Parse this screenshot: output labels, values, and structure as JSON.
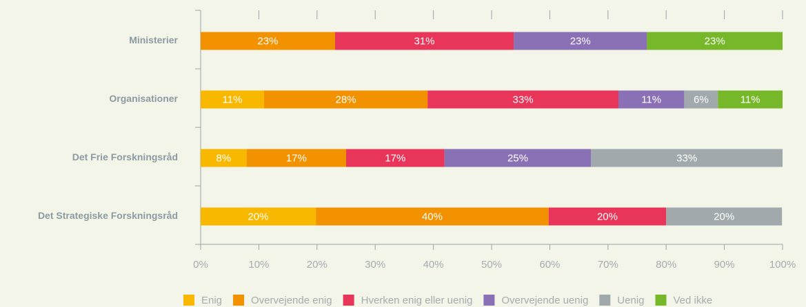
{
  "chart_data": {
    "type": "stacked-barh",
    "categories": [
      "Ministerier",
      "Organisationer",
      "Det Frie Forskningsråd",
      "Det Strategiske Forskningsråd"
    ],
    "series": [
      {
        "name": "Enig",
        "color": "#f9b800",
        "values": [
          null,
          10.9,
          7.9,
          19.8
        ],
        "value_labels": [
          null,
          "11%",
          "8%",
          "20%"
        ]
      },
      {
        "name": "Overvejende enig",
        "color": "#f39200",
        "values": [
          23.1,
          28.1,
          17.1,
          40.0
        ],
        "value_labels": [
          "23%",
          "28%",
          "17%",
          "40%"
        ]
      },
      {
        "name": "Hverken enig eller uenig",
        "color": "#e8365a",
        "values": [
          30.7,
          32.8,
          16.9,
          20.2
        ],
        "value_labels": [
          "31%",
          "33%",
          "17%",
          "20%"
        ]
      },
      {
        "name": "Overvejende uenig",
        "color": "#8a70b4",
        "values": [
          22.9,
          11.3,
          25.2,
          null
        ],
        "value_labels": [
          "23%",
          "11%",
          "25%",
          null
        ]
      },
      {
        "name": "Uenig",
        "color": "#a2a9ad",
        "values": [
          null,
          5.8,
          32.9,
          19.9
        ],
        "value_labels": [
          null,
          "6%",
          "33%",
          "20%"
        ]
      },
      {
        "name": "Ved ikke",
        "color": "#76b82a",
        "values": [
          23.3,
          11.1,
          null,
          null
        ],
        "value_labels": [
          "23%",
          "11%",
          null,
          null
        ]
      }
    ],
    "xlim": [
      0,
      100
    ],
    "xticks": [
      {
        "value": 0,
        "label": "0%"
      },
      {
        "value": 10,
        "label": "10%"
      },
      {
        "value": 20,
        "label": "20%"
      },
      {
        "value": 30,
        "label": "30%"
      },
      {
        "value": 40,
        "label": "40%"
      },
      {
        "value": 50,
        "label": "50%"
      },
      {
        "value": 60,
        "label": "60%"
      },
      {
        "value": 70,
        "label": "70%"
      },
      {
        "value": 80,
        "label": "80%"
      },
      {
        "value": 90,
        "label": "90%"
      },
      {
        "value": 100,
        "label": "100%"
      }
    ],
    "legend": "bottom"
  }
}
